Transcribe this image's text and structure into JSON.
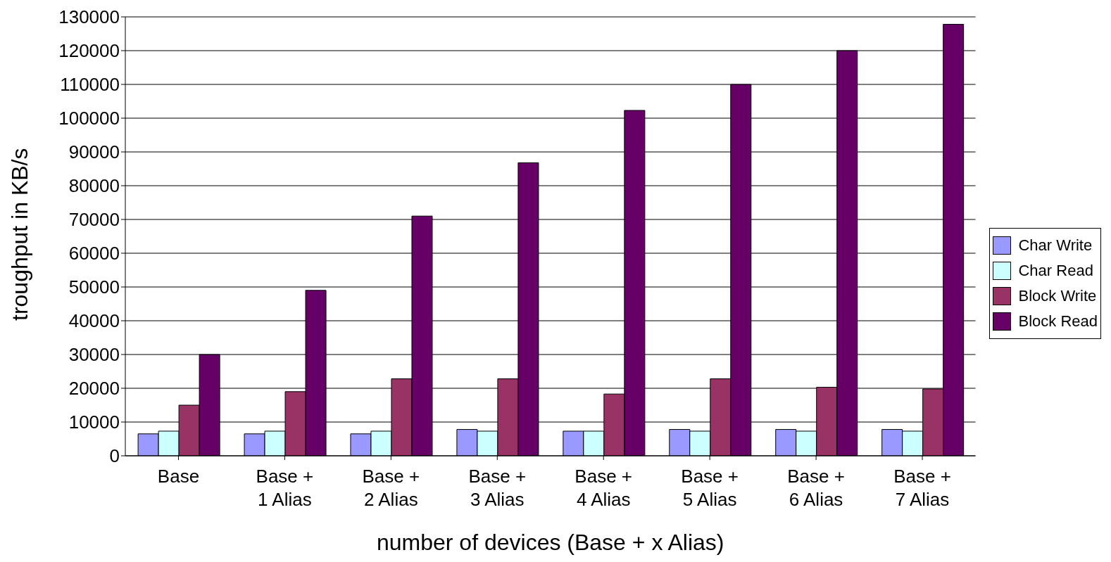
{
  "chart_data": {
    "type": "bar",
    "xlabel": "number of devices (Base + x Alias)",
    "ylabel": "troughput in KB/s",
    "categories": [
      "Base",
      "Base + 1 Alias",
      "Base + 2 Alias",
      "Base + 3 Alias",
      "Base + 4 Alias",
      "Base + 5 Alias",
      "Base + 6 Alias",
      "Base + 7 Alias"
    ],
    "series": [
      {
        "name": "Char Write",
        "color": "#9999ff",
        "values": [
          6500,
          6500,
          6500,
          7800,
          7300,
          7800,
          7800,
          7800
        ]
      },
      {
        "name": "Char Read",
        "color": "#ccffff",
        "values": [
          7300,
          7300,
          7300,
          7300,
          7300,
          7300,
          7300,
          7300
        ]
      },
      {
        "name": "Block Write",
        "color": "#993366",
        "values": [
          15000,
          19000,
          22800,
          22800,
          18300,
          22800,
          20300,
          19800
        ]
      },
      {
        "name": "Block Read",
        "color": "#660066",
        "values": [
          30000,
          49000,
          71000,
          86800,
          102300,
          110000,
          120000,
          127800
        ]
      }
    ],
    "ylim": [
      0,
      130000
    ],
    "yticks": [
      0,
      10000,
      20000,
      30000,
      40000,
      50000,
      60000,
      70000,
      80000,
      90000,
      100000,
      110000,
      120000,
      130000
    ],
    "grid": "y",
    "legend": "right"
  }
}
